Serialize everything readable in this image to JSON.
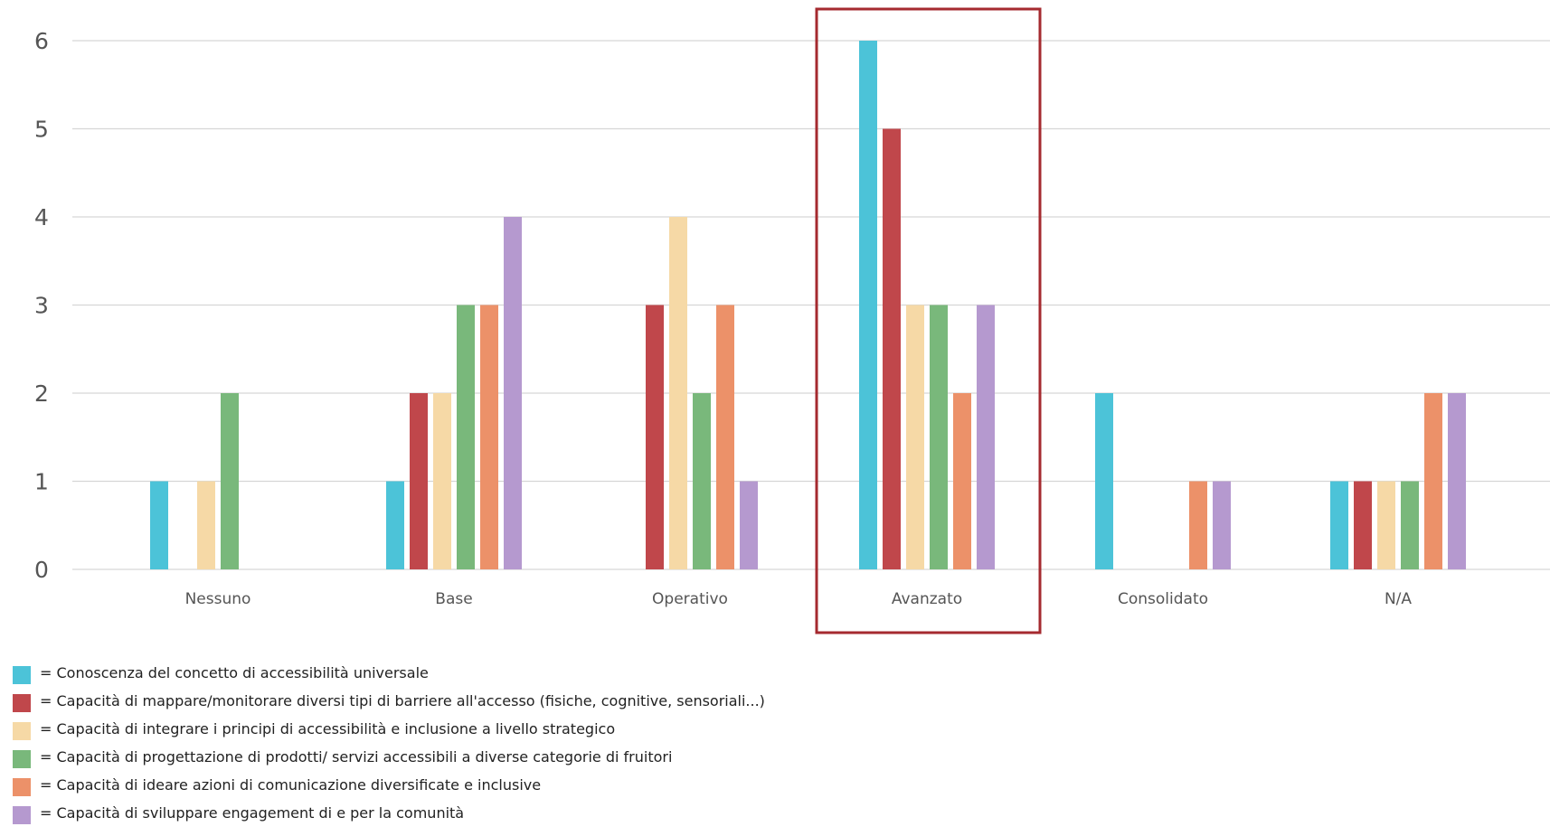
{
  "chart_data": {
    "type": "bar",
    "categories": [
      "Nessuno",
      "Base",
      "Operativo",
      "Avanzato",
      "Consolidato",
      "N/A"
    ],
    "series": [
      {
        "name": "= Conoscenza del concetto di accessibilità universale",
        "color": "#4cc3d8",
        "values": [
          1,
          1,
          0,
          6,
          2,
          1
        ]
      },
      {
        "name": "= Capacità di mappare/monitorare diversi tipi di barriere all'accesso (fisiche, cognitive, sensoriali...)",
        "color": "#c0474b",
        "values": [
          0,
          2,
          3,
          5,
          0,
          1
        ]
      },
      {
        "name": "= Capacità di integrare i principi di accessibilità e inclusione a livello strategico",
        "color": "#f6d9a6",
        "values": [
          1,
          2,
          4,
          3,
          0,
          1
        ]
      },
      {
        "name": "= Capacità di progettazione di prodotti/ servizi accessibili a diverse categorie di fruitori",
        "color": "#79b87b",
        "values": [
          2,
          3,
          2,
          3,
          0,
          1
        ]
      },
      {
        "name": "= Capacità di ideare azioni di comunicazione diversificate e inclusive",
        "color": "#ec9169",
        "values": [
          0,
          3,
          3,
          2,
          1,
          2
        ]
      },
      {
        "name": "= Capacità di sviluppare engagement di e per la comunità",
        "color": "#b599cf",
        "values": [
          0,
          4,
          1,
          3,
          1,
          2
        ]
      }
    ],
    "yticks": [
      "0",
      "1",
      "2",
      "3",
      "4",
      "5",
      "6"
    ],
    "ylim": [
      0,
      6
    ],
    "grid": true,
    "legend_position": "bottom-left",
    "highlighted_category": "Avanzato",
    "highlight_color": "#a52a2f"
  }
}
